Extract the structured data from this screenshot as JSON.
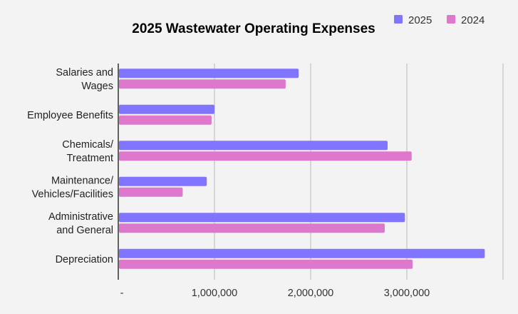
{
  "chart_data": {
    "type": "bar",
    "orientation": "horizontal",
    "title": "2025 Wastewater Operating Expenses",
    "xlabel": "",
    "ylabel": "",
    "categories": [
      [
        "Salaries and",
        "Wages"
      ],
      [
        "Employee Benefits"
      ],
      [
        "Chemicals/",
        "Treatment"
      ],
      [
        "Maintenance/",
        "Vehicles/Facilities"
      ],
      [
        "Administrative",
        "and General"
      ],
      [
        "Depreciation"
      ]
    ],
    "series": [
      {
        "name": "2025",
        "color": "#8175ff",
        "values": [
          1875000,
          1000000,
          2800000,
          920000,
          2980000,
          3810000
        ]
      },
      {
        "name": "2024",
        "color": "#dd78cc",
        "values": [
          1740000,
          970000,
          3050000,
          670000,
          2770000,
          3060000
        ]
      }
    ],
    "xlim": [
      0,
      4000000
    ],
    "xticks": [
      0,
      1000000,
      2000000,
      3000000,
      4000000
    ],
    "xtick_labels": [
      "-",
      "1,000,000",
      "2,000,000",
      "3,000,000",
      ""
    ],
    "grid": true,
    "legend_position": "top-right"
  }
}
